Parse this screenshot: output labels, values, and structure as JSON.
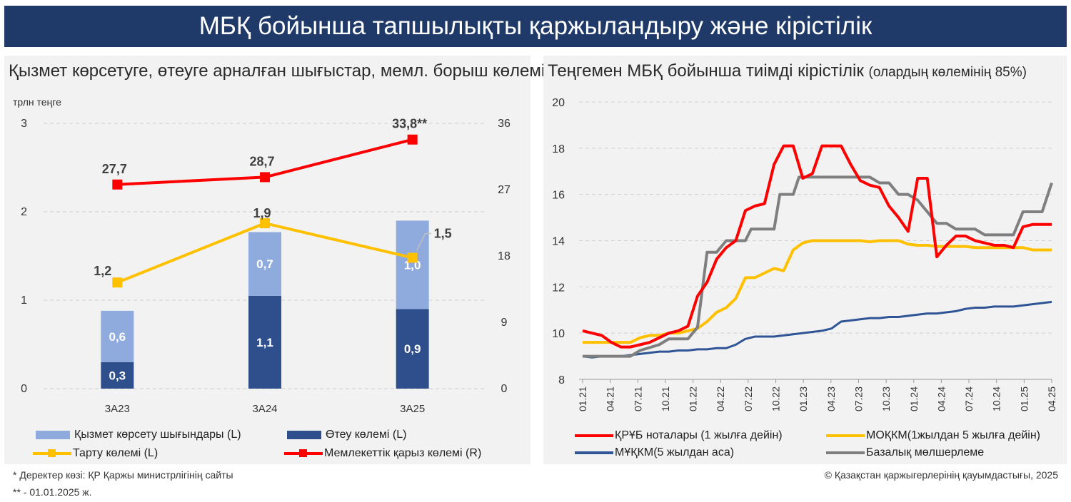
{
  "header": {
    "title": "МБҚ бойынша тапшылықты қаржыландыру және кірістілік"
  },
  "left_panel": {
    "title": "Қызмет көрсетуге, өтеуге арналған шығыстар, мемл. борыш көлемі",
    "unit": "трлн теңге"
  },
  "right_panel": {
    "title_main": "Теңгемен МБҚ бойынша тиімді кірістілік",
    "title_note": "(олардың көлемінің 85%)"
  },
  "chart_data": [
    {
      "type": "bar",
      "categories": [
        "3A23",
        "3A24",
        "3A25"
      ],
      "stacked": true,
      "series": [
        {
          "name": "Өтеу көлемі (L)",
          "type": "bar",
          "axis": "left",
          "values": [
            0.3,
            1.05,
            0.9
          ],
          "labels": [
            "0,3",
            "1,1",
            "0,9"
          ],
          "color": "#2e4f8c"
        },
        {
          "name": "Қызмет көрсету шығындары (L)",
          "type": "bar",
          "axis": "left",
          "values": [
            0.58,
            0.72,
            1.0
          ],
          "labels": [
            "0,6",
            "0,7",
            "1,0"
          ],
          "color": "#8faadc"
        },
        {
          "name": "Тарту көлемі (L)",
          "type": "line",
          "axis": "left",
          "values": [
            1.2,
            1.87,
            1.48
          ],
          "labels": [
            "1,2",
            "1,9",
            "1,5"
          ],
          "color": "#ffc000"
        },
        {
          "name": "Мемлекеттік қарыз көлемі (R)",
          "type": "line",
          "axis": "right",
          "values": [
            27.7,
            28.7,
            33.8
          ],
          "labels": [
            "27,7",
            "28,7",
            "33,8**"
          ],
          "color": "#ff0000"
        }
      ],
      "y_left": {
        "range": [
          0,
          3
        ],
        "ticks": [
          "0",
          "1",
          "2",
          "3"
        ]
      },
      "y_right": {
        "range": [
          0,
          36
        ],
        "ticks": [
          "0",
          "9",
          "18",
          "27",
          "36"
        ]
      },
      "grid": "dashed horizontal",
      "legend": "bottom"
    },
    {
      "type": "line",
      "x_labels": [
        "01.21",
        "04.21",
        "07.21",
        "10.21",
        "01.22",
        "04.22",
        "07.22",
        "10.22",
        "01.23",
        "04.23",
        "07.23",
        "10.23",
        "01.24",
        "04.24",
        "07.24",
        "10.24",
        "01.25",
        "04.25"
      ],
      "y_range": [
        8,
        20
      ],
      "y_ticks": [
        "8",
        "10",
        "12",
        "14",
        "16",
        "18",
        "20"
      ],
      "series": [
        {
          "name": "ҚРҰБ ноталары (1 жылға дейін)",
          "color": "#ff0000",
          "points": [
            [
              0,
              10.1
            ],
            [
              1,
              10.0
            ],
            [
              2,
              9.9
            ],
            [
              3,
              9.6
            ],
            [
              4,
              9.4
            ],
            [
              5,
              9.4
            ],
            [
              6,
              9.5
            ],
            [
              7,
              9.6
            ],
            [
              8,
              9.8
            ],
            [
              9,
              10.0
            ],
            [
              10,
              10.1
            ],
            [
              11,
              10.3
            ],
            [
              12,
              11.6
            ],
            [
              13,
              12.2
            ],
            [
              14,
              13.2
            ],
            [
              15,
              13.7
            ],
            [
              16,
              14.0
            ],
            [
              17,
              15.3
            ],
            [
              18,
              15.5
            ],
            [
              19,
              15.6
            ],
            [
              20,
              17.3
            ],
            [
              21,
              18.1
            ],
            [
              22,
              18.1
            ],
            [
              23,
              16.7
            ],
            [
              24,
              16.9
            ],
            [
              25,
              18.1
            ],
            [
              26,
              18.1
            ],
            [
              27,
              18.1
            ],
            [
              28,
              17.3
            ],
            [
              29,
              16.6
            ],
            [
              30,
              16.4
            ],
            [
              31,
              16.3
            ],
            [
              32,
              15.5
            ],
            [
              33,
              15.0
            ],
            [
              34,
              14.4
            ],
            [
              35,
              16.7
            ],
            [
              36,
              16.7
            ],
            [
              37,
              13.3
            ],
            [
              38,
              13.8
            ],
            [
              39,
              14.2
            ],
            [
              40,
              14.2
            ],
            [
              41,
              14.0
            ],
            [
              42,
              13.9
            ],
            [
              43,
              13.8
            ],
            [
              44,
              13.8
            ],
            [
              45,
              13.7
            ],
            [
              46,
              14.6
            ],
            [
              47,
              14.7
            ],
            [
              48,
              14.7
            ],
            [
              49,
              14.7
            ]
          ]
        },
        {
          "name": "МОҚКМ(1жылдан 5 жылға дейін)",
          "color": "#ffc000",
          "points": [
            [
              0,
              9.6
            ],
            [
              1,
              9.6
            ],
            [
              2,
              9.6
            ],
            [
              3,
              9.6
            ],
            [
              4,
              9.6
            ],
            [
              5,
              9.6
            ],
            [
              6,
              9.8
            ],
            [
              7,
              9.9
            ],
            [
              8,
              9.9
            ],
            [
              9,
              10.0
            ],
            [
              10,
              10.0
            ],
            [
              11,
              10.1
            ],
            [
              12,
              10.2
            ],
            [
              13,
              10.5
            ],
            [
              14,
              10.9
            ],
            [
              15,
              11.1
            ],
            [
              16,
              11.5
            ],
            [
              17,
              12.4
            ],
            [
              18,
              12.4
            ],
            [
              19,
              12.6
            ],
            [
              20,
              12.8
            ],
            [
              21,
              12.7
            ],
            [
              22,
              13.6
            ],
            [
              23,
              13.9
            ],
            [
              24,
              14.0
            ],
            [
              25,
              14.0
            ],
            [
              26,
              14.0
            ],
            [
              27,
              14.0
            ],
            [
              28,
              14.0
            ],
            [
              29,
              14.0
            ],
            [
              30,
              13.95
            ],
            [
              31,
              14.0
            ],
            [
              32,
              14.0
            ],
            [
              33,
              14.0
            ],
            [
              34,
              13.85
            ],
            [
              35,
              13.8
            ],
            [
              36,
              13.8
            ],
            [
              37,
              13.75
            ],
            [
              38,
              13.75
            ],
            [
              39,
              13.75
            ],
            [
              40,
              13.75
            ],
            [
              41,
              13.7
            ],
            [
              42,
              13.7
            ],
            [
              43,
              13.7
            ],
            [
              44,
              13.7
            ],
            [
              45,
              13.7
            ],
            [
              46,
              13.7
            ],
            [
              47,
              13.6
            ],
            [
              48,
              13.6
            ],
            [
              49,
              13.6
            ]
          ]
        },
        {
          "name": "МҰҚКМ(5 жылдан аса)",
          "color": "#2f5597",
          "points": [
            [
              0,
              9.0
            ],
            [
              1,
              8.95
            ],
            [
              2,
              9.0
            ],
            [
              3,
              9.0
            ],
            [
              4,
              9.0
            ],
            [
              5,
              9.05
            ],
            [
              6,
              9.1
            ],
            [
              7,
              9.15
            ],
            [
              8,
              9.2
            ],
            [
              9,
              9.2
            ],
            [
              10,
              9.25
            ],
            [
              11,
              9.25
            ],
            [
              12,
              9.3
            ],
            [
              13,
              9.3
            ],
            [
              14,
              9.35
            ],
            [
              15,
              9.35
            ],
            [
              16,
              9.5
            ],
            [
              17,
              9.75
            ],
            [
              18,
              9.85
            ],
            [
              19,
              9.85
            ],
            [
              20,
              9.85
            ],
            [
              21,
              9.9
            ],
            [
              22,
              9.95
            ],
            [
              23,
              10.0
            ],
            [
              24,
              10.05
            ],
            [
              25,
              10.1
            ],
            [
              26,
              10.2
            ],
            [
              27,
              10.5
            ],
            [
              28,
              10.55
            ],
            [
              29,
              10.6
            ],
            [
              30,
              10.65
            ],
            [
              31,
              10.65
            ],
            [
              32,
              10.7
            ],
            [
              33,
              10.7
            ],
            [
              34,
              10.75
            ],
            [
              35,
              10.8
            ],
            [
              36,
              10.85
            ],
            [
              37,
              10.85
            ],
            [
              38,
              10.9
            ],
            [
              39,
              10.95
            ],
            [
              40,
              11.05
            ],
            [
              41,
              11.1
            ],
            [
              42,
              11.1
            ],
            [
              43,
              11.15
            ],
            [
              44,
              11.15
            ],
            [
              45,
              11.15
            ],
            [
              46,
              11.2
            ],
            [
              47,
              11.25
            ],
            [
              48,
              11.3
            ],
            [
              49,
              11.35
            ]
          ]
        },
        {
          "name": "Базалық   мөлшерлеме",
          "color": "#7f7f7f",
          "points": [
            [
              0,
              9.0
            ],
            [
              5,
              9.0
            ],
            [
              6,
              9.25
            ],
            [
              8,
              9.5
            ],
            [
              9,
              9.75
            ],
            [
              11,
              9.75
            ],
            [
              12,
              10.25
            ],
            [
              13,
              13.5
            ],
            [
              14,
              13.5
            ],
            [
              15,
              14.0
            ],
            [
              17,
              14.0
            ],
            [
              17.6,
              14.5
            ],
            [
              20,
              14.5
            ],
            [
              20.6,
              16.0
            ],
            [
              22,
              16.0
            ],
            [
              22.6,
              16.75
            ],
            [
              30,
              16.75
            ],
            [
              31,
              16.5
            ],
            [
              32,
              16.5
            ],
            [
              33,
              16.0
            ],
            [
              34,
              16.0
            ],
            [
              35,
              15.75
            ],
            [
              36,
              15.25
            ],
            [
              37,
              14.75
            ],
            [
              38,
              14.75
            ],
            [
              39,
              14.5
            ],
            [
              41,
              14.5
            ],
            [
              42,
              14.25
            ],
            [
              45,
              14.25
            ],
            [
              46,
              15.25
            ],
            [
              48,
              15.25
            ],
            [
              49,
              16.5
            ]
          ]
        }
      ],
      "legend": "bottom"
    }
  ],
  "legend_left": {
    "items": [
      {
        "label": "Қызмет көрсету шығындары (L)",
        "color": "#8faadc",
        "kind": "bar"
      },
      {
        "label": "Өтеу көлемі (L)",
        "color": "#2e4f8c",
        "kind": "bar"
      },
      {
        "label": "Тарту көлемі (L)",
        "color": "#ffc000",
        "kind": "line"
      },
      {
        "label": "Мемлекеттік қарыз көлемі (R)",
        "color": "#ff0000",
        "kind": "line"
      }
    ]
  },
  "legend_right": {
    "items": [
      {
        "label": "ҚРҰБ ноталары (1 жылға дейін)",
        "color": "#ff0000"
      },
      {
        "label": "МОҚКМ(1жылдан 5 жылға дейін)",
        "color": "#ffc000"
      },
      {
        "label": "МҰҚКМ(5 жылдан аса)",
        "color": "#2f5597"
      },
      {
        "label": "Базалық   мөлшерлеме",
        "color": "#7f7f7f"
      }
    ]
  },
  "footer": {
    "source": "* Деректер көзі: ҚР Қаржы министрлігінің сайты",
    "note": "** - 01.01.2025 ж.",
    "copyright": "© Қазақстан қаржыгерлерінің қауымдастығы, 2025"
  }
}
